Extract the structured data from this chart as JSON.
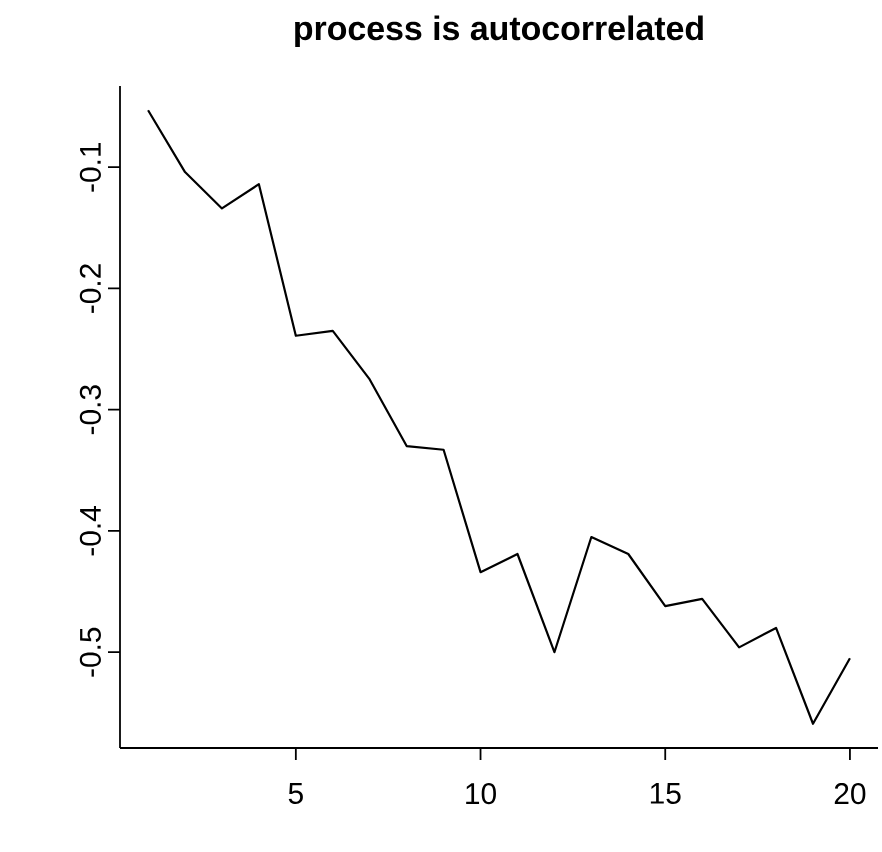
{
  "chart_data": {
    "type": "line",
    "title": "process is autocorrelated",
    "x": [
      1,
      2,
      3,
      4,
      5,
      6,
      7,
      8,
      9,
      10,
      11,
      12,
      13,
      14,
      15,
      16,
      17,
      18,
      19,
      20
    ],
    "series": [
      {
        "color": "#000000",
        "values": [
          -0.053,
          -0.104,
          -0.134,
          -0.114,
          -0.239,
          -0.235,
          -0.275,
          -0.33,
          -0.333,
          -0.434,
          -0.419,
          -0.5,
          -0.405,
          -0.419,
          -0.462,
          -0.456,
          -0.496,
          -0.48,
          -0.559,
          -0.505
        ]
      }
    ],
    "xlim": [
      0.24,
      20.76
    ],
    "ylim": [
      -0.579,
      -0.033
    ],
    "xticks": [
      5,
      10,
      15,
      20
    ],
    "yticks": [
      -0.5,
      -0.4,
      -0.3,
      -0.2,
      -0.1
    ],
    "grid": false,
    "marker": "none",
    "line_style": "solid"
  }
}
